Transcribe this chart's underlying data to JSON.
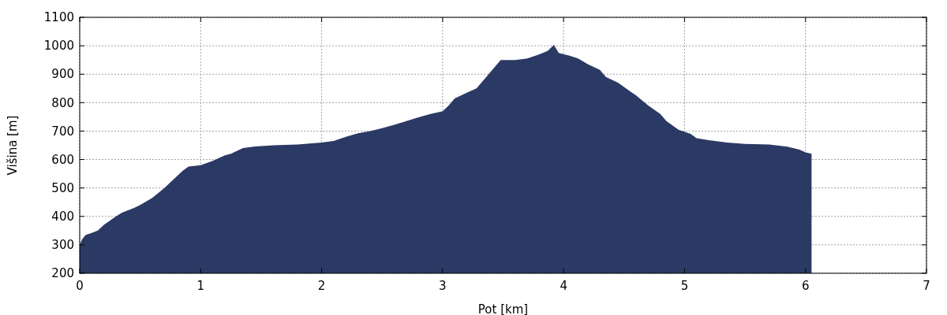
{
  "chart_data": {
    "type": "area",
    "xlabel": "Pot [km]",
    "ylabel": "Višina [m]",
    "x": [
      0,
      0.02,
      0.05,
      0.1,
      0.15,
      0.2,
      0.3,
      0.35,
      0.45,
      0.5,
      0.6,
      0.7,
      0.8,
      0.85,
      0.9,
      1.0,
      1.1,
      1.2,
      1.25,
      1.35,
      1.45,
      1.6,
      1.8,
      2.0,
      2.1,
      2.2,
      2.3,
      2.4,
      2.5,
      2.6,
      2.7,
      2.8,
      2.9,
      3.0,
      3.05,
      3.1,
      3.2,
      3.28,
      3.35,
      3.42,
      3.48,
      3.6,
      3.7,
      3.8,
      3.87,
      3.92,
      3.96,
      4.05,
      4.12,
      4.2,
      4.3,
      4.35,
      4.45,
      4.55,
      4.6,
      4.7,
      4.8,
      4.85,
      4.95,
      5.05,
      5.1,
      5.2,
      5.35,
      5.5,
      5.7,
      5.85,
      5.95,
      6.0,
      6.05
    ],
    "series": [
      {
        "color": "#2b3a64",
        "values": [
          300,
          320,
          335,
          342,
          350,
          370,
          400,
          413,
          430,
          440,
          465,
          500,
          540,
          560,
          575,
          580,
          595,
          615,
          620,
          640,
          646,
          650,
          653,
          660,
          665,
          680,
          692,
          700,
          710,
          722,
          735,
          748,
          760,
          770,
          790,
          815,
          835,
          850,
          885,
          920,
          950,
          950,
          955,
          970,
          982,
          1003,
          975,
          965,
          955,
          935,
          915,
          890,
          870,
          840,
          825,
          790,
          760,
          735,
          705,
          690,
          675,
          668,
          660,
          655,
          653,
          645,
          635,
          625,
          620
        ]
      }
    ],
    "xlim": [
      0,
      7
    ],
    "xticks": [
      0,
      1,
      2,
      3,
      4,
      5,
      6,
      7
    ],
    "ylim": [
      200,
      1100
    ],
    "yticks": [
      200,
      300,
      400,
      500,
      600,
      700,
      800,
      900,
      1000,
      1100
    ],
    "grid": true
  }
}
